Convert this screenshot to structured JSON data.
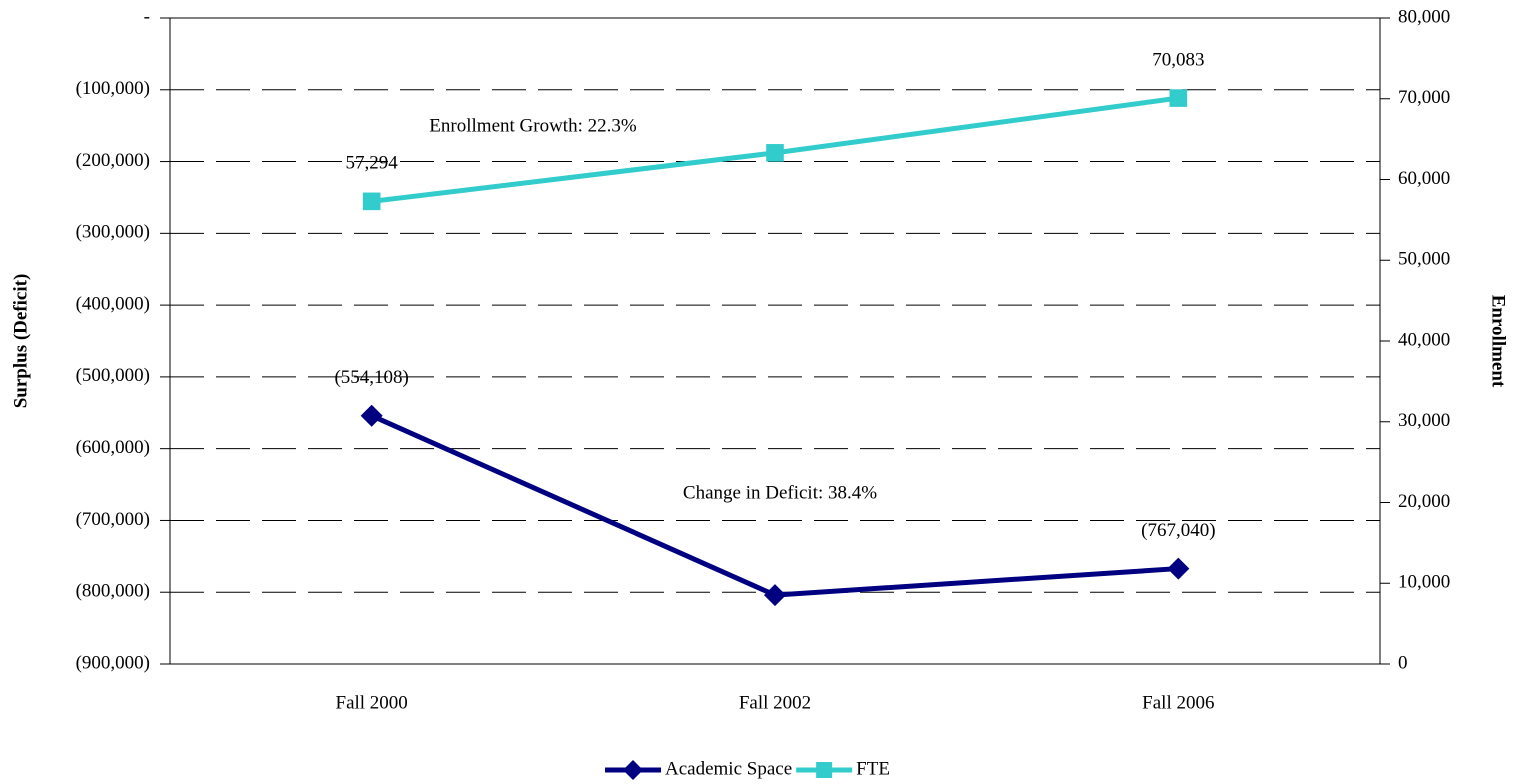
{
  "chart_data": {
    "type": "line",
    "categories": [
      "Fall 2000",
      "Fall 2002",
      "Fall 2006"
    ],
    "y_label": "Surplus (Deficit)",
    "y2_label": "Enrollment",
    "ylim": [
      -900000,
      0
    ],
    "yticks": [
      {
        "value": 0,
        "label": "-"
      },
      {
        "value": -100000,
        "label": "(100,000)"
      },
      {
        "value": -200000,
        "label": "(200,000)"
      },
      {
        "value": -300000,
        "label": "(300,000)"
      },
      {
        "value": -400000,
        "label": "(400,000)"
      },
      {
        "value": -500000,
        "label": "(500,000)"
      },
      {
        "value": -600000,
        "label": "(600,000)"
      },
      {
        "value": -700000,
        "label": "(700,000)"
      },
      {
        "value": -800000,
        "label": "(800,000)"
      },
      {
        "value": -900000,
        "label": "(900,000)"
      }
    ],
    "y2lim": [
      0,
      80000
    ],
    "y2ticks": [
      0,
      {
        "value": 10000,
        "label": "10,000"
      },
      {
        "value": 20000,
        "label": "20,000"
      },
      {
        "value": 30000,
        "label": "30,000"
      },
      {
        "value": 40000,
        "label": "40,000"
      },
      {
        "value": 50000,
        "label": "50,000"
      },
      {
        "value": 60000,
        "label": "60,000"
      },
      {
        "value": 70000,
        "label": "70,000"
      },
      {
        "value": 80000,
        "label": "80,000"
      }
    ],
    "grid": true,
    "legend": "bottom",
    "series": [
      {
        "name": "Academic Space",
        "color": "#000080",
        "marker": "diamond",
        "values": [
          -554108,
          -804000,
          -767040
        ],
        "value_labels": [
          "(554,108)",
          null,
          "(767,040)"
        ]
      },
      {
        "name": "FTE",
        "color": "#33cccc",
        "marker": "square",
        "axis": "y2",
        "values": [
          57294,
          63300,
          70083
        ],
        "value_labels": [
          "57,294",
          null,
          "70,083"
        ]
      }
    ],
    "annotations": [
      "Enrollment Growth: 22.3%",
      "Change in Deficit: 38.4%"
    ]
  }
}
